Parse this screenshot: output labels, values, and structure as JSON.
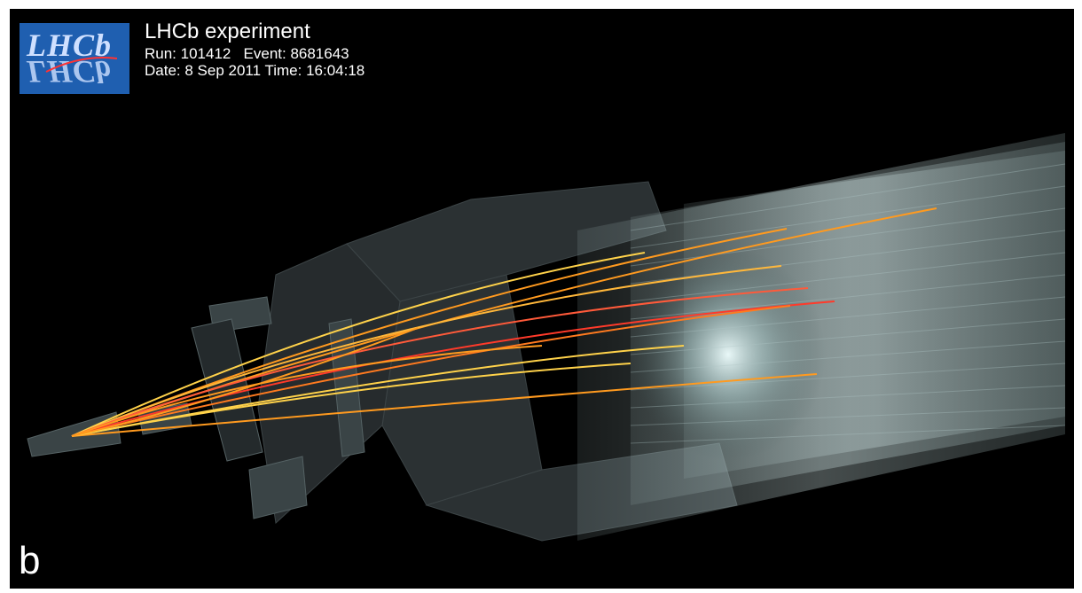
{
  "logo": {
    "text_top": "LHCb",
    "text_bottom": "LHCb"
  },
  "info": {
    "title": "LHCb experiment",
    "run_event": "Run: 101412   Event: 8681643",
    "date_time": "Date: 8 Sep 2011 Time: 16:04:18"
  },
  "panel_label": "b",
  "colors": {
    "background": "#000000",
    "detector": "#2e3436",
    "tracks_orange": "#ff9a1f",
    "tracks_yellow": "#ffd24a",
    "tracks_red": "#ff3a2a",
    "logo_blue": "#1f5fb0"
  }
}
